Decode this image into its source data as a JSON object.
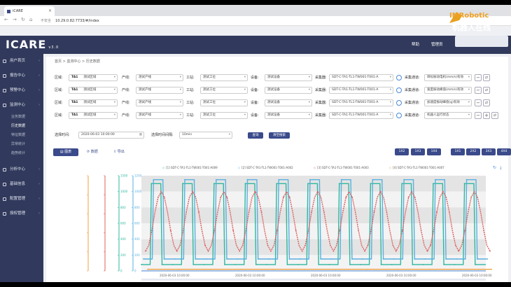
{
  "browser": {
    "tab_title": "iCARE",
    "address_security": "不安全",
    "address_url": "10.29.0.82:7733/#/index"
  },
  "header": {
    "logo": "ICARE",
    "version": "v3.0",
    "help": "帮助",
    "user": "管理员"
  },
  "watermark": {
    "line1": "IMRobotic",
    "line2": "机器人在线"
  },
  "sidebar": {
    "items": [
      {
        "label": "用户首页"
      },
      {
        "label": "报告中心"
      },
      {
        "label": "预警中心"
      },
      {
        "label": "监测中心"
      }
    ],
    "sub_items": [
      {
        "label": "业务数据"
      },
      {
        "label": "历史数据"
      },
      {
        "label": "特征数据"
      },
      {
        "label": "异常统计"
      },
      {
        "label": "趋势统计"
      }
    ],
    "items2": [
      {
        "label": "分析中心"
      },
      {
        "label": "基础信息"
      },
      {
        "label": "配置管理"
      },
      {
        "label": "授权管理"
      }
    ]
  },
  "breadcrumb": "首页 > 监测中心 > 历史数据",
  "labels": {
    "region": "区域:",
    "line": "产线:",
    "station": "工站:",
    "device": "设备:",
    "collector": "采集器:",
    "sensor": "采集通道:",
    "time": "选择时间:",
    "interval": "选择时间间隔:"
  },
  "filter_rows": [
    {
      "region": "TA1",
      "region2": "测试区域",
      "line": "测试产线",
      "station": "测试工位",
      "device": "测试设备",
      "collector": "SDT-C-TA1-TL1-TW001-T001-A",
      "sensor": "目标振动电机(mm/s)有效"
    },
    {
      "region": "TA1",
      "region2": "测试区域",
      "line": "测试产线",
      "station": "测试工位",
      "device": "测试设备",
      "collector": "SDT-C-TA1-TL1-TW001-T001-A",
      "sensor": "速度振动峰值(mm/s)有效"
    },
    {
      "region": "TA1",
      "region2": "测试区域",
      "line": "测试产线",
      "station": "测试工位",
      "device": "测试设备",
      "collector": "SDT-C-TA1-TL1-TW001-T001-A",
      "sensor": "加速度振动峰值(g)有效"
    },
    {
      "region": "TA1",
      "region2": "测试区域",
      "line": "测试产线",
      "station": "测试工位",
      "device": "测试设备",
      "collector": "SDT-C-TA1-TL1-TW001-T001-A",
      "sensor": "机器人运行状态"
    }
  ],
  "time_value": "2020-06-03 10:00:00",
  "interval_value": "10min",
  "search_label": "查询",
  "reset_label": "清空搜索",
  "toolbar": {
    "chart": "图表",
    "table": "数据",
    "export": "导出"
  },
  "mode_buttons_left": [
    "1X2",
    "1X3",
    "1X4"
  ],
  "mode_buttons_right": [
    "1X1",
    "2X2",
    "3X3",
    "4X4"
  ],
  "legend": [
    {
      "label": "[1] SDT-C-TA1-TL1-TW001-T001-A009",
      "color": "#2eb8a0"
    },
    {
      "label": "[2] SDT-C-TA1-TL1-TW001-T001-A002",
      "color": "#5ab0e0"
    },
    {
      "label": "[3] SDT-C-TA1-TL1-TW001-T001-A003",
      "color": "#e06060"
    },
    {
      "label": "[4] SDT-C-TA1-TL1-TW001-T001-A007",
      "color": "#f0a040"
    }
  ],
  "chart_data": {
    "type": "line",
    "y_axes": [
      {
        "ticks": [
          "",
          "",
          "",
          "",
          "",
          ""
        ],
        "color": "#f0a040"
      },
      {
        "ticks": [
          "",
          "",
          "",
          "",
          "",
          ""
        ],
        "color": "#e06060"
      },
      {
        "ticks": [
          "1500",
          "1000",
          "800",
          "600",
          "400",
          "200",
          "0"
        ],
        "color": "#2eb8a0"
      },
      {
        "ticks": [
          "1200",
          "1000",
          "800",
          "600",
          "400",
          "200",
          "0"
        ],
        "color": "#5ab0e0"
      }
    ],
    "x_ticks": [
      "2020-06-03 10:00:00",
      "2020-06-03 10:00:00",
      "2020-06-03 10:00:00",
      "2020-06-03 10:00:00",
      "2020-06-03 10:00:00"
    ],
    "series": [
      {
        "name": "[1] SDT-C-TA1-TL1-TW001-T001-A009",
        "color": "#2eb8a0",
        "pattern": "square",
        "low": 80,
        "high": 1100
      },
      {
        "name": "[2] SDT-C-TA1-TL1-TW001-T001-A002",
        "color": "#5ab0e0",
        "pattern": "square",
        "low": 150,
        "high": 1150
      },
      {
        "name": "[3] SDT-C-TA1-TL1-TW001-T001-A003",
        "color": "#e06060",
        "pattern": "wave",
        "low": 250,
        "high": 1000
      },
      {
        "name": "[4] SDT-C-TA1-TL1-TW001-T001-A007",
        "color": "#f0a040",
        "pattern": "flat",
        "low": 20,
        "high": 20
      }
    ],
    "cycles": 11,
    "ylim": [
      0,
      1200
    ]
  }
}
